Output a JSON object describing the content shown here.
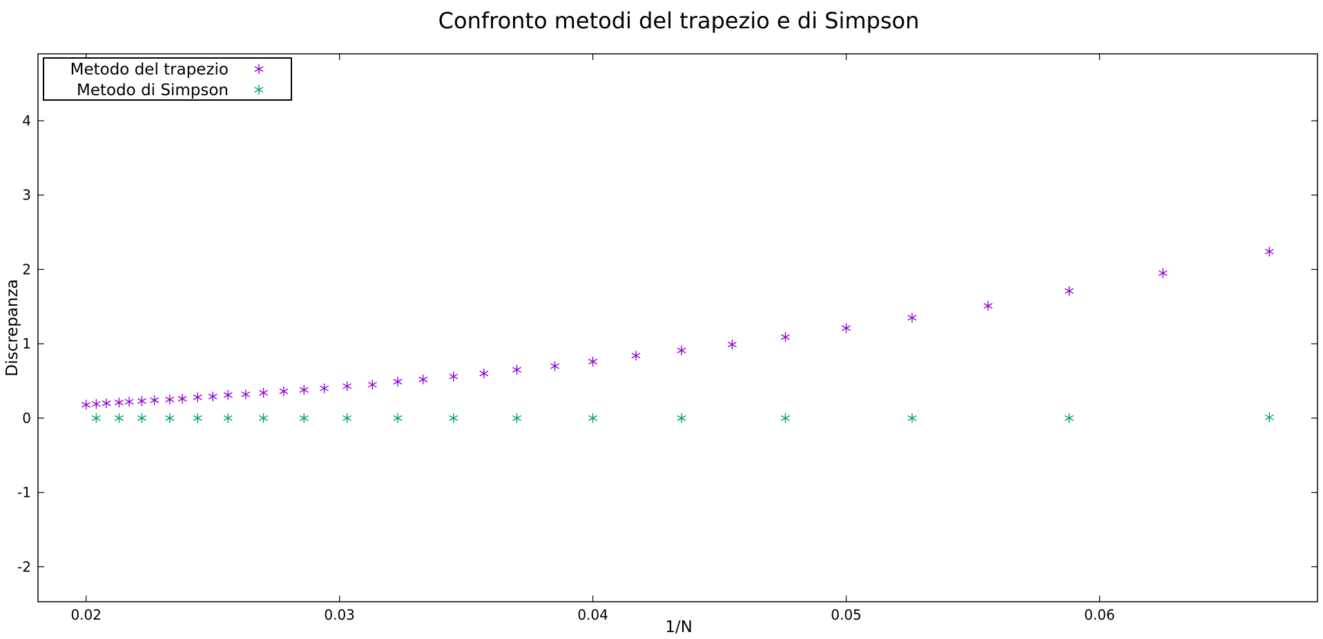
{
  "chart_data": {
    "type": "scatter",
    "title": "Confronto metodi del trapezio e di Simpson",
    "xlabel": "1/N",
    "ylabel": "Discrepanza",
    "xlim": [
      0.0181,
      0.0686
    ],
    "ylim": [
      -2.47,
      4.9
    ],
    "grid": false,
    "legend_position": "top-left",
    "x_ticks": [
      0.02,
      0.03,
      0.04,
      0.05,
      0.06
    ],
    "x_tick_labels": [
      "0.02",
      "0.03",
      "0.04",
      "0.05",
      "0.06"
    ],
    "y_ticks": [
      -2,
      -1,
      0,
      1,
      2,
      3,
      4
    ],
    "y_tick_labels": [
      "-2",
      "-1",
      "0",
      "1",
      "2",
      "3",
      "4"
    ],
    "marker": "asterisk",
    "series": [
      {
        "name": "Metodo del trapezio",
        "color": "#9400d3",
        "x": [
          0.0667,
          0.0625,
          0.0588,
          0.0556,
          0.0526,
          0.05,
          0.0476,
          0.0455,
          0.0435,
          0.0417,
          0.04,
          0.0385,
          0.037,
          0.0357,
          0.0345,
          0.0333,
          0.0323,
          0.0313,
          0.0303,
          0.0294,
          0.0286,
          0.0278,
          0.027,
          0.0263,
          0.0256,
          0.025,
          0.0244,
          0.0238,
          0.0233,
          0.0227,
          0.0222,
          0.0217,
          0.0213,
          0.0208,
          0.0204,
          0.02
        ],
        "y": [
          2.24,
          1.95,
          1.71,
          1.51,
          1.35,
          1.21,
          1.09,
          0.99,
          0.91,
          0.84,
          0.76,
          0.7,
          0.65,
          0.6,
          0.56,
          0.52,
          0.49,
          0.45,
          0.43,
          0.4,
          0.38,
          0.36,
          0.34,
          0.32,
          0.31,
          0.29,
          0.28,
          0.26,
          0.25,
          0.24,
          0.23,
          0.22,
          0.21,
          0.2,
          0.19,
          0.18
        ]
      },
      {
        "name": "Metodo di Simpson",
        "color": "#009e73",
        "x": [
          0.0667,
          0.0588,
          0.0526,
          0.0476,
          0.0435,
          0.04,
          0.037,
          0.0345,
          0.0323,
          0.0303,
          0.0286,
          0.027,
          0.0256,
          0.0244,
          0.0233,
          0.0222,
          0.0213,
          0.0204
        ],
        "y": [
          0.01,
          0.0,
          0.0,
          0.0,
          0.0,
          0.0,
          0.0,
          0.0,
          0.0,
          0.0,
          0.0,
          0.0,
          0.0,
          0.0,
          0.0,
          0.0,
          0.0,
          0.0
        ]
      }
    ]
  }
}
